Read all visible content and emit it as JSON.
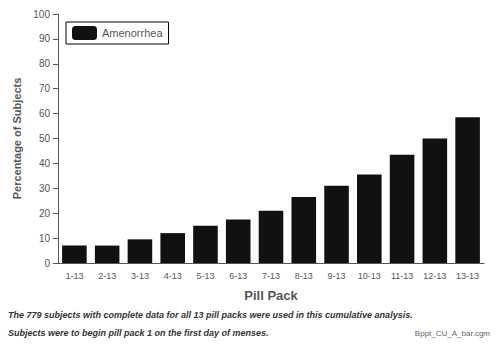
{
  "chart_data": {
    "type": "bar",
    "categories": [
      "1-13",
      "2-13",
      "3-13",
      "4-13",
      "5-13",
      "6-13",
      "7-13",
      "8-13",
      "9-13",
      "10-13",
      "11-13",
      "12-13",
      "13-13"
    ],
    "series": [
      {
        "name": "Amenorrhea",
        "color": "#111111",
        "values": [
          7.0,
          7.0,
          9.5,
          12.0,
          15.0,
          17.5,
          21.0,
          26.5,
          31.0,
          35.5,
          43.5,
          50.0,
          58.5
        ]
      }
    ],
    "xlabel": "Pill Pack",
    "ylabel": "Percentage of Subjects",
    "ylim": [
      0,
      100
    ],
    "yticks": [
      0,
      10,
      20,
      30,
      40,
      50,
      60,
      70,
      80,
      90,
      100
    ],
    "legend": "upper left",
    "grid": false,
    "annotations": [
      "The 779 subjects with complete data for all 13 pill packs were used in this cumulative analysis.",
      "Subjects were to begin pill pack 1 on the first day of menses.",
      "Bppt_CU_A_bar.cgm"
    ]
  }
}
